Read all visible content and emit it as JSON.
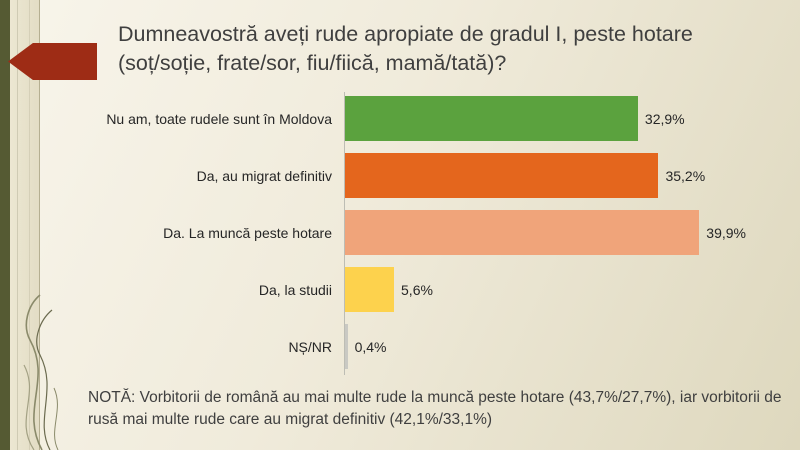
{
  "slide": {
    "title": "Dumneavostră aveți rude apropiate de gradul I, peste hotare (soț/soție, frate/sor, fiu/fiică, mamă/tată)?",
    "note": "NOTĂ: Vorbitorii de română au mai multe rude la muncă peste hotare (43,7%/27,7%), iar vorbitorii de rusă mai multe rude care au migrat definitiv (42,1%/33,1%)"
  },
  "chart_data": {
    "type": "bar",
    "orientation": "horizontal",
    "title": "Dumneavostră aveți rude apropiate de gradul I, peste hotare (soț/soție, frate/sor, fiu/fiică, mamă/tată)?",
    "categories": [
      "Nu am, toate rudele sunt în Moldova",
      "Da, au migrat definitiv",
      "Da. La muncă peste hotare",
      "Da, la studii",
      "NȘ/NR"
    ],
    "values": [
      32.9,
      35.2,
      39.9,
      5.6,
      0.4
    ],
    "value_labels": [
      "32,9%",
      "35,2%",
      "39,9%",
      "5,6%",
      "0,4%"
    ],
    "bar_colors": [
      "#5ba23e",
      "#e4661d",
      "#f0a47a",
      "#fdd24d",
      "#c9c9c3"
    ],
    "xlim": [
      0,
      45
    ],
    "grid": false,
    "legend": "none"
  },
  "theme": {
    "accent_red": "#9e2c15",
    "sidebar_olive": "#555a33",
    "background_light": "#f8f5eb",
    "background_dark": "#ded8be",
    "text_color": "#3f3f3f"
  }
}
